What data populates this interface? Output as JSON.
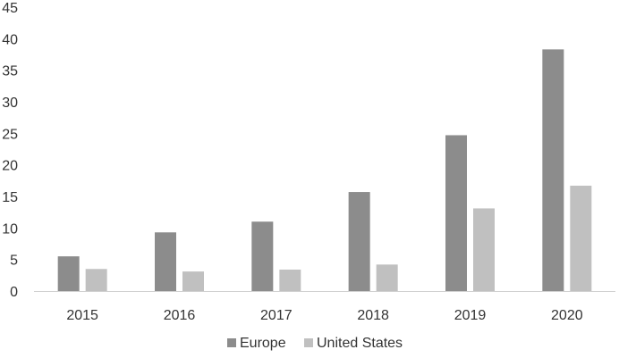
{
  "chart_data": {
    "type": "bar",
    "title": "",
    "xlabel": "",
    "ylabel": "",
    "categories": [
      "2015",
      "2016",
      "2017",
      "2018",
      "2019",
      "2020"
    ],
    "series": [
      {
        "name": "Europe",
        "color": "#8c8c8c",
        "values": [
          5.5,
          9.3,
          11.0,
          15.7,
          24.7,
          38.3
        ]
      },
      {
        "name": "United States",
        "color": "#c0c0c0",
        "values": [
          3.5,
          3.1,
          3.4,
          4.2,
          13.1,
          16.7
        ]
      }
    ],
    "ylim": [
      0,
      45
    ],
    "yticks": [
      "0",
      "5",
      "10",
      "15",
      "20",
      "25",
      "30",
      "35",
      "40",
      "45"
    ],
    "grid": false,
    "legend_position": "bottom"
  }
}
